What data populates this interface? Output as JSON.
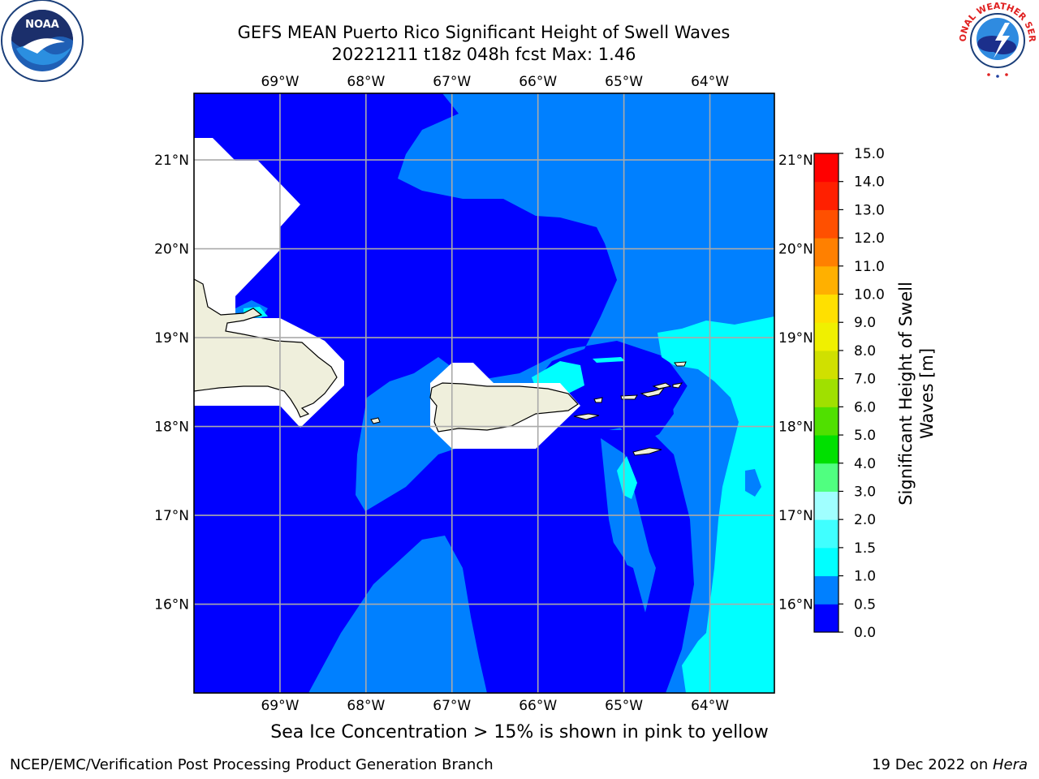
{
  "header": {
    "title_line1": "GEFS MEAN Puerto Rico Significant Height of Swell Waves",
    "title_line2": "20221211 t18z 048h fcst   Max: 1.46"
  },
  "logos": {
    "left": "noaa-logo",
    "right": "nws-logo"
  },
  "map": {
    "lon_range": [
      -70,
      -63.25
    ],
    "lat_range": [
      15,
      21.75
    ],
    "lon_tick_labels": [
      "69°W",
      "68°W",
      "67°W",
      "66°W",
      "65°W",
      "64°W"
    ],
    "lat_tick_labels": [
      "21°N",
      "20°N",
      "19°N",
      "18°N",
      "17°N",
      "16°N"
    ],
    "grid": true,
    "land_color": "#efefdc",
    "landmasses": [
      "Hispaniola",
      "Puerto Rico",
      "Virgin Islands"
    ]
  },
  "colorbar": {
    "label": "Significant Height of Swell Waves [m]",
    "label_line1": "Significant Height of Swell",
    "label_line2": "Waves [m]",
    "ticks": [
      "15.0",
      "14.0",
      "13.0",
      "12.0",
      "11.0",
      "10.0",
      "9.0",
      "8.0",
      "7.0",
      "6.0",
      "5.0",
      "4.0",
      "3.0",
      "2.0",
      "1.5",
      "1.0",
      "0.5",
      "0.0"
    ],
    "colors_bottom_to_top": [
      "#0000ff",
      "#0080ff",
      "#00ffff",
      "#40ffff",
      "#a0ffff",
      "#50ff80",
      "#00e000",
      "#50e000",
      "#a0e000",
      "#d0e000",
      "#f0f000",
      "#ffe000",
      "#ffb000",
      "#ff8000",
      "#ff5000",
      "#ff2000",
      "#ff0000"
    ]
  },
  "footer": {
    "ice_note": "Sea Ice Concentration > 15% is shown in pink to yellow",
    "credit": "NCEP/EMC/Verification Post Processing Product Generation Branch",
    "date": "19 Dec 2022 on ",
    "machine": "Hera"
  }
}
